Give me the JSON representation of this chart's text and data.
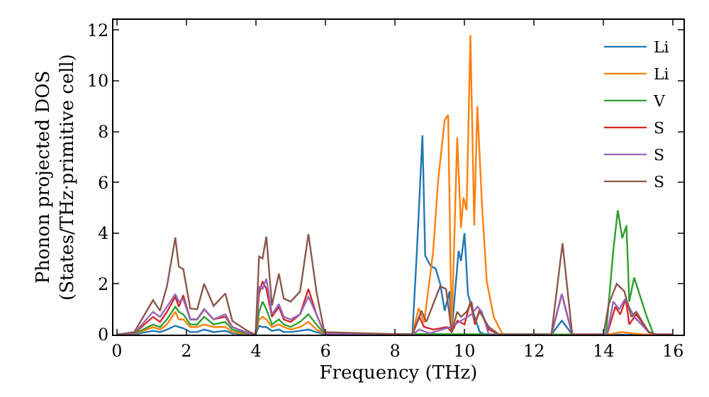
{
  "chart_data": {
    "type": "line",
    "xlabel": "Frequency (THz)",
    "ylabel": "Phonon projected DOS\n(States/THz·primitive cell)",
    "xlim": [
      -0.1,
      16.3
    ],
    "ylim": [
      0,
      12.4
    ],
    "xticks": [
      0,
      2,
      4,
      6,
      8,
      10,
      12,
      14,
      16
    ],
    "yticks": [
      0,
      2,
      4,
      6,
      8,
      10,
      12
    ],
    "legend": "top right",
    "marker": "none",
    "line_style": "solid",
    "series": [
      {
        "name": "Li",
        "color": "#1f77b4",
        "x": [
          0,
          0.5,
          1.04,
          1.24,
          1.44,
          1.68,
          1.78,
          1.91,
          2.11,
          2.31,
          2.51,
          2.78,
          3.12,
          3.32,
          3.79,
          3.99,
          4.09,
          4.19,
          4.3,
          4.46,
          4.66,
          4.8,
          5.0,
          5.27,
          5.51,
          5.74,
          5.97,
          8.5,
          8.63,
          8.79,
          8.87,
          9.03,
          9.17,
          9.3,
          9.43,
          9.57,
          9.63,
          9.83,
          9.9,
          10.0,
          10.1,
          10.24,
          10.44,
          10.6,
          12.5,
          12.8,
          13.1,
          16
        ],
        "values": [
          0,
          0.01,
          0.15,
          0.1,
          0.2,
          0.35,
          0.3,
          0.25,
          0.1,
          0.1,
          0.2,
          0.1,
          0.15,
          0.05,
          0.01,
          0,
          0.35,
          0.3,
          0.3,
          0.15,
          0.2,
          0.1,
          0.1,
          0.15,
          0.2,
          0.1,
          0.01,
          0,
          3.27,
          7.85,
          3.1,
          2.7,
          2.6,
          2.0,
          0.94,
          1.7,
          0.1,
          3.3,
          2.9,
          4.0,
          1.6,
          0.9,
          0.1,
          0,
          0,
          0.55,
          0,
          0
        ]
      },
      {
        "name": "Li",
        "color": "#ff7f0e",
        "x": [
          0,
          0.5,
          1.04,
          1.24,
          1.44,
          1.68,
          1.78,
          1.91,
          2.11,
          2.31,
          2.51,
          2.78,
          3.12,
          3.32,
          3.79,
          3.99,
          4.09,
          4.19,
          4.3,
          4.46,
          4.66,
          4.8,
          5.0,
          5.27,
          5.51,
          5.74,
          5.97,
          8.5,
          8.68,
          8.84,
          9.1,
          9.24,
          9.43,
          9.53,
          9.63,
          9.79,
          9.9,
          9.97,
          10.06,
          10.17,
          10.28,
          10.37,
          10.5,
          10.64,
          10.84,
          11.1,
          14.1,
          14.5,
          15.2,
          16
        ],
        "values": [
          0,
          0.02,
          0.3,
          0.2,
          0.4,
          0.9,
          0.6,
          0.6,
          0.3,
          0.3,
          0.4,
          0.3,
          0.3,
          0.1,
          0.02,
          0,
          0.6,
          0.7,
          0.6,
          0.3,
          0.4,
          0.3,
          0.2,
          0.3,
          0.5,
          0.2,
          0.02,
          0,
          1.05,
          0.48,
          3.3,
          6.06,
          8.45,
          8.65,
          0.1,
          7.77,
          4.2,
          5.4,
          4.9,
          11.8,
          4.3,
          9.0,
          5.2,
          2.1,
          0.7,
          0,
          0,
          0.1,
          0,
          0
        ]
      },
      {
        "name": "V",
        "color": "#2ca02c",
        "x": [
          0,
          0.5,
          1.04,
          1.24,
          1.44,
          1.68,
          1.78,
          1.91,
          2.11,
          2.31,
          2.51,
          2.78,
          3.12,
          3.32,
          3.79,
          3.99,
          4.09,
          4.19,
          4.3,
          4.46,
          4.66,
          4.8,
          5.0,
          5.27,
          5.51,
          5.74,
          5.97,
          14.07,
          14.28,
          14.41,
          14.54,
          14.66,
          14.74,
          14.88,
          15.01,
          15.22,
          15.44,
          16
        ],
        "values": [
          0,
          0.03,
          0.4,
          0.3,
          0.6,
          1.1,
          0.9,
          0.8,
          0.4,
          0.4,
          0.7,
          0.4,
          0.5,
          0.2,
          0.03,
          0,
          0.9,
          1.3,
          1.0,
          0.4,
          0.6,
          0.4,
          0.3,
          0.5,
          0.8,
          0.4,
          0.03,
          0,
          3.3,
          4.9,
          3.8,
          4.3,
          1.3,
          2.25,
          1.7,
          0.8,
          0,
          0
        ]
      },
      {
        "name": "S",
        "color": "#d62728",
        "x": [
          0,
          0.5,
          1.04,
          1.24,
          1.44,
          1.68,
          1.78,
          1.91,
          2.11,
          2.31,
          2.51,
          2.78,
          3.12,
          3.32,
          3.79,
          3.99,
          4.09,
          4.19,
          4.3,
          4.46,
          4.66,
          4.8,
          5.0,
          5.27,
          5.51,
          5.74,
          5.97,
          8.5,
          8.7,
          8.84,
          9.1,
          9.5,
          9.63,
          9.8,
          10.0,
          10.17,
          10.3,
          10.44,
          10.7,
          11.0,
          12.5,
          12.8,
          13.1,
          14.1,
          14.34,
          14.48,
          14.64,
          14.74,
          14.94,
          15.3,
          15.5,
          16
        ],
        "values": [
          0,
          0.05,
          0.7,
          0.5,
          0.9,
          1.5,
          1.1,
          1.55,
          0.6,
          0.6,
          1.0,
          0.6,
          0.7,
          0.3,
          0.05,
          0,
          1.6,
          2.1,
          1.8,
          0.7,
          1.1,
          0.6,
          0.5,
          0.8,
          1.8,
          0.8,
          0.05,
          0,
          0.7,
          0.3,
          0.2,
          0.3,
          0.1,
          0.55,
          0.4,
          1.3,
          0.4,
          1.0,
          0.2,
          0,
          0,
          1.6,
          0,
          0,
          1.1,
          0.8,
          1.4,
          0.4,
          0.8,
          0.1,
          0,
          0
        ]
      },
      {
        "name": "S",
        "color": "#9467bd",
        "x": [
          0,
          0.5,
          1.04,
          1.24,
          1.44,
          1.68,
          1.78,
          1.91,
          2.11,
          2.31,
          2.51,
          2.78,
          3.12,
          3.32,
          3.79,
          3.99,
          4.09,
          4.19,
          4.3,
          4.46,
          4.66,
          4.8,
          5.0,
          5.27,
          5.51,
          5.74,
          5.97,
          8.5,
          8.7,
          9.0,
          9.6,
          9.97,
          10.2,
          10.37,
          10.5,
          10.7,
          12.5,
          12.8,
          13.1,
          14.1,
          14.28,
          14.45,
          14.62,
          14.88,
          15.3,
          15.5,
          16
        ],
        "values": [
          0,
          0.05,
          0.9,
          0.7,
          1.1,
          1.6,
          1.3,
          1.4,
          0.6,
          0.6,
          1.0,
          0.6,
          0.8,
          0.3,
          0.05,
          0,
          1.9,
          1.8,
          2.2,
          0.8,
          1.2,
          0.7,
          0.6,
          0.8,
          1.5,
          0.8,
          0.05,
          0,
          0.2,
          0.05,
          0.3,
          0.6,
          0.8,
          1.1,
          0.9,
          0,
          0,
          1.6,
          0,
          0,
          1.3,
          1.0,
          1.4,
          0.7,
          0.1,
          0,
          0
        ]
      },
      {
        "name": "S",
        "color": "#8c564b",
        "x": [
          0,
          0.5,
          1.04,
          1.24,
          1.44,
          1.68,
          1.78,
          1.91,
          2.11,
          2.31,
          2.51,
          2.78,
          3.12,
          3.32,
          3.79,
          3.99,
          4.09,
          4.19,
          4.3,
          4.46,
          4.66,
          4.8,
          5.0,
          5.27,
          5.51,
          5.74,
          5.97,
          8.5,
          8.76,
          8.9,
          9.3,
          9.47,
          9.63,
          9.79,
          9.9,
          10.06,
          10.2,
          10.3,
          10.44,
          10.7,
          11.0,
          12.5,
          12.82,
          13.1,
          14.0,
          14.15,
          14.38,
          14.6,
          14.8,
          14.94,
          15.3,
          15.5,
          16
        ],
        "values": [
          0,
          0.1,
          1.36,
          0.94,
          1.91,
          3.82,
          2.68,
          2.58,
          1.03,
          1.0,
          2.0,
          1.13,
          1.62,
          0.54,
          0.12,
          0,
          3.08,
          3.0,
          3.86,
          1.15,
          2.4,
          1.42,
          1.3,
          1.7,
          3.96,
          1.7,
          0.1,
          0,
          0.94,
          0.5,
          1.9,
          1.8,
          0.1,
          0.9,
          0.7,
          0.9,
          1.3,
          0.5,
          0.9,
          0.3,
          0,
          0,
          3.6,
          0,
          0,
          1.2,
          2.0,
          1.7,
          0.7,
          0.9,
          0.1,
          0,
          0
        ]
      }
    ]
  }
}
